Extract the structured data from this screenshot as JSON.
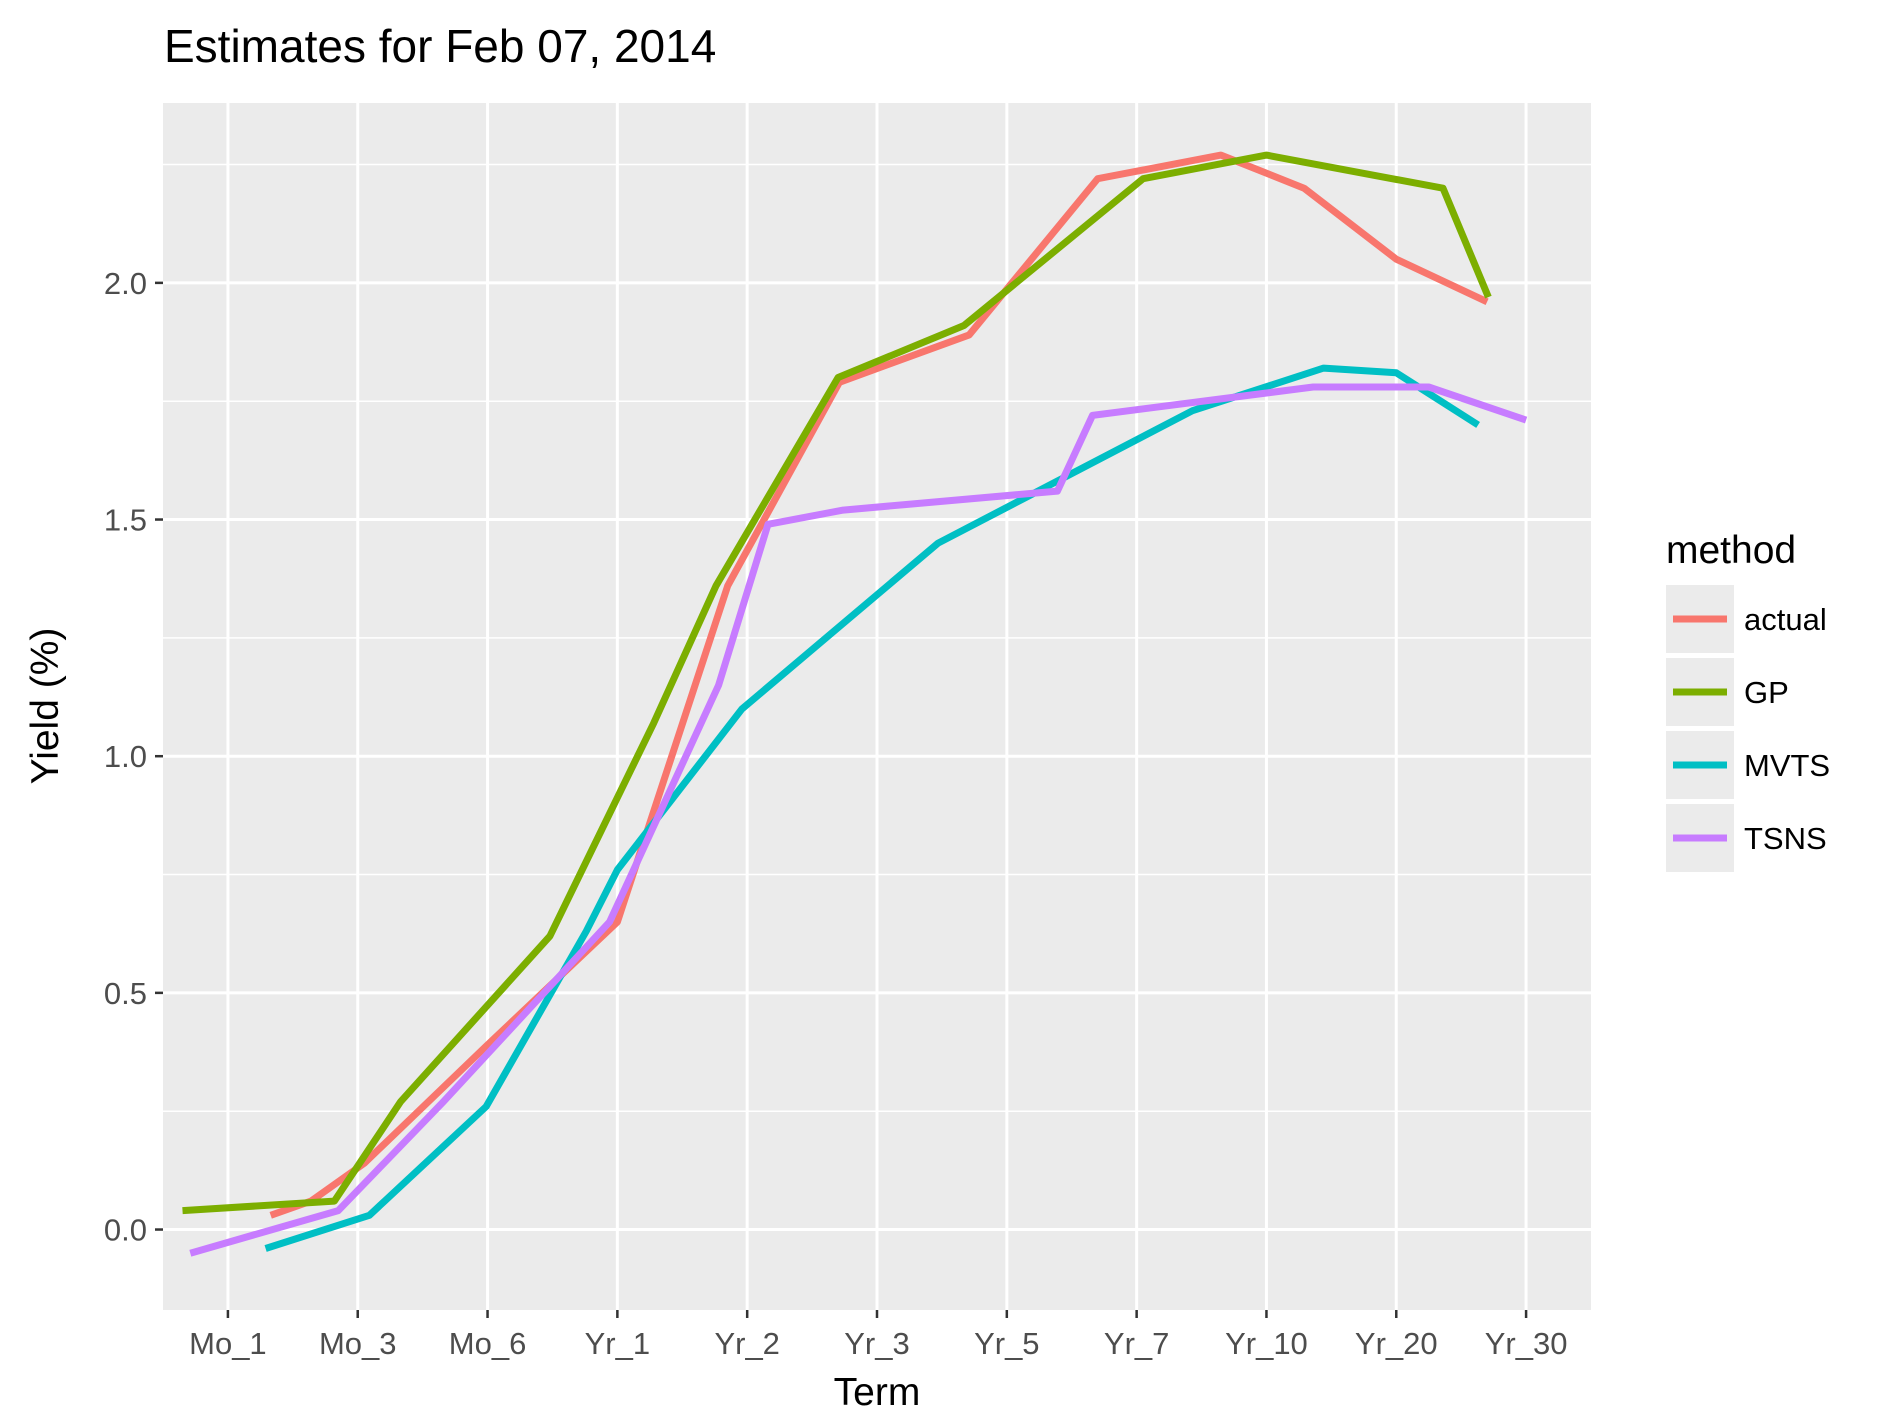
{
  "chart_data": {
    "type": "line",
    "title": "Estimates for Feb 07, 2014",
    "xlabel": "Term",
    "ylabel": "Yield (%)",
    "categories": [
      "Mo_1",
      "Mo_3",
      "Mo_6",
      "Yr_1",
      "Yr_2",
      "Yr_3",
      "Yr_5",
      "Yr_7",
      "Yr_10",
      "Yr_20",
      "Yr_30"
    ],
    "ylim": [
      -0.17,
      2.38
    ],
    "yticks": [
      0.0,
      0.5,
      1.0,
      1.5,
      2.0
    ],
    "ytick_labels": [
      "0.0",
      "0.5",
      "1.0",
      "1.5",
      "2.0"
    ],
    "grid": true,
    "legend": {
      "title": "method",
      "position": "right"
    },
    "series": [
      {
        "name": "actual",
        "color": "#F8766D",
        "x": [
          1.33,
          1.64,
          2.05,
          3.0,
          4.0,
          4.85,
          5.71,
          6.71,
          7.7,
          8.65,
          9.29,
          10.0,
          10.7
        ],
        "y": [
          0.03,
          0.06,
          0.14,
          0.39,
          0.65,
          1.36,
          1.79,
          1.89,
          2.22,
          2.27,
          2.2,
          2.05,
          1.96
        ]
      },
      {
        "name": "GP",
        "color": "#7CAE00",
        "x": [
          0.65,
          1.82,
          2.33,
          3.48,
          4.28,
          4.76,
          5.7,
          6.67,
          8.05,
          9.0,
          10.36,
          10.71
        ],
        "y": [
          0.04,
          0.06,
          0.27,
          0.62,
          1.07,
          1.36,
          1.8,
          1.91,
          2.22,
          2.27,
          2.2,
          1.97
        ]
      },
      {
        "name": "MVTS",
        "color": "#00BFC4",
        "x": [
          1.29,
          2.09,
          2.99,
          3.76,
          4.0,
          4.96,
          6.47,
          7.17,
          8.43,
          9.44,
          10.0,
          10.63
        ],
        "y": [
          -0.04,
          0.03,
          0.26,
          0.63,
          0.76,
          1.1,
          1.45,
          1.55,
          1.73,
          1.82,
          1.81,
          1.7
        ]
      },
      {
        "name": "TSNS",
        "color": "#C77CFF",
        "x": [
          0.71,
          1.85,
          2.66,
          3.94,
          4.78,
          5.16,
          5.74,
          7.39,
          7.66,
          9.36,
          10.25,
          11.0
        ],
        "y": [
          -0.05,
          0.04,
          0.27,
          0.65,
          1.15,
          1.49,
          1.52,
          1.56,
          1.72,
          1.78,
          1.78,
          1.71
        ]
      }
    ]
  }
}
